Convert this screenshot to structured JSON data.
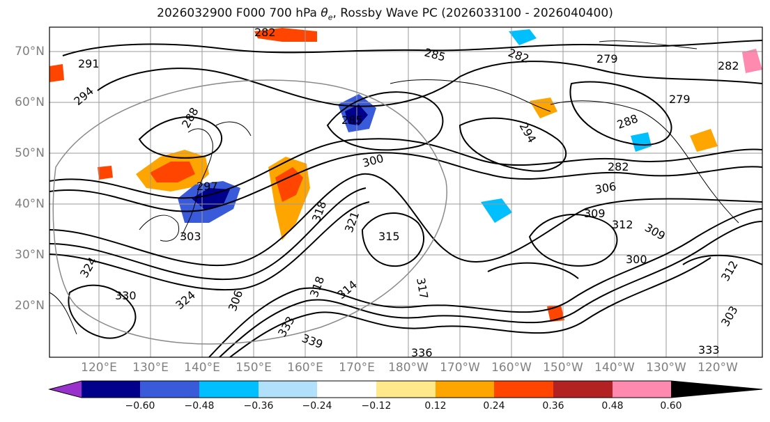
{
  "title_prefix": "2026032900 F000 700 hPa ",
  "title_symbol": "θ",
  "title_symbol_sub": "e",
  "title_suffix": ", Rossby Wave PC (2026033100 - 2026040400)",
  "map": {
    "lat_labels": [
      "70°N",
      "60°N",
      "50°N",
      "40°N",
      "30°N",
      "20°N"
    ],
    "lon_labels": [
      "120°E",
      "130°E",
      "140°E",
      "150°E",
      "160°E",
      "170°E",
      "180°W",
      "170°W",
      "160°W",
      "150°W",
      "140°W",
      "130°W",
      "120°W"
    ],
    "contour_labels": [
      "282",
      "291",
      "294",
      "285",
      "282",
      "279",
      "282",
      "279",
      "288",
      "282",
      "288",
      "285",
      "294",
      "300",
      "297",
      "306",
      "309",
      "303",
      "321",
      "315",
      "318",
      "312",
      "317",
      "330",
      "324",
      "333",
      "339",
      "336",
      "300",
      "306",
      "318",
      "312",
      "303",
      "309",
      "324",
      "314",
      "333"
    ]
  },
  "colorbar": {
    "ticks": [
      "−0.60",
      "−0.48",
      "−0.36",
      "−0.24",
      "−0.12",
      "0.12",
      "0.24",
      "0.36",
      "0.48",
      "0.60"
    ],
    "colors": [
      "#9932CC",
      "#00008B",
      "#3A5BD9",
      "#00BFFF",
      "#B0E0FA",
      "#FFFFFF",
      "#FFE98A",
      "#FFA500",
      "#FF4500",
      "#B22222",
      "#FF8AB0"
    ]
  }
}
